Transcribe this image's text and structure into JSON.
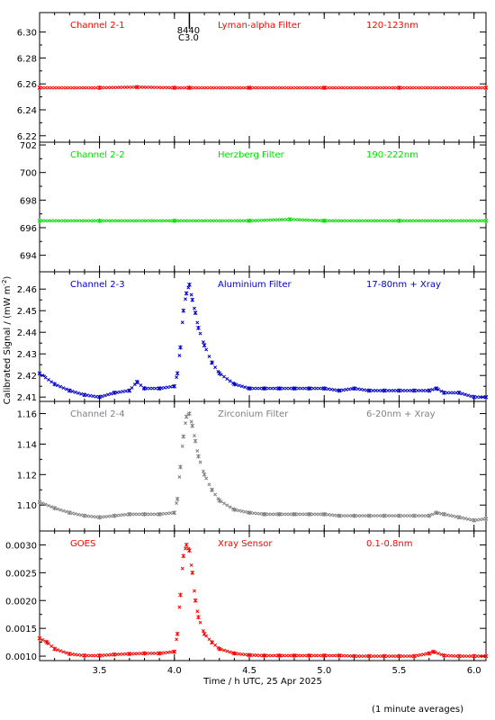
{
  "chart_data": {
    "type": "scatter",
    "xlabel": "Time / h UTC, 25 Apr 2025",
    "ylabel": "Calibrated Signal / (mW m",
    "ylabel_sup": "-2",
    "ylabel_close": ")",
    "footnote": "(1 minute averages)",
    "xlim": [
      3.1,
      6.08
    ],
    "x_ticks": [
      "3.5",
      "4.0",
      "4.5",
      "5.0",
      "5.5",
      "6.0"
    ],
    "flare_marker": {
      "x": 4.1,
      "label_top": "8440",
      "label_bottom": "C3.0"
    },
    "panels": [
      {
        "channel": "Channel 2-1",
        "filter": "Lyman-alpha Filter",
        "band": "120-123nm",
        "color": "#ff0000",
        "ylim": [
          6.215,
          6.315
        ],
        "y_ticks": [
          "6.22",
          "6.24",
          "6.26",
          "6.28",
          "6.30"
        ],
        "series": {
          "x": [
            3.1,
            3.5,
            3.75,
            4.0,
            4.1,
            4.5,
            5.0,
            5.5,
            6.08
          ],
          "y": [
            6.257,
            6.257,
            6.2575,
            6.257,
            6.257,
            6.257,
            6.257,
            6.257,
            6.257
          ]
        }
      },
      {
        "channel": "Channel 2-2",
        "filter": "Herzberg Filter",
        "band": "190-222nm",
        "color": "#00dd00",
        "ylim": [
          692.8,
          702.2
        ],
        "y_ticks": [
          "694",
          "696",
          "698",
          "700",
          "702"
        ],
        "series": {
          "x": [
            3.1,
            3.5,
            4.0,
            4.5,
            4.77,
            5.0,
            5.5,
            6.08
          ],
          "y": [
            696.5,
            696.5,
            696.5,
            696.5,
            696.6,
            696.5,
            696.5,
            696.5
          ]
        }
      },
      {
        "channel": "Channel 2-3",
        "filter": "Aluminium Filter",
        "band": "17-80nm + Xray",
        "color": "#0000cc",
        "ylim": [
          2.408,
          2.468
        ],
        "y_ticks": [
          "2.41",
          "2.42",
          "2.43",
          "2.44",
          "2.45",
          "2.46"
        ],
        "series": {
          "x": [
            3.1,
            3.2,
            3.3,
            3.4,
            3.5,
            3.6,
            3.7,
            3.75,
            3.8,
            3.9,
            4.0,
            4.02,
            4.04,
            4.06,
            4.08,
            4.1,
            4.12,
            4.14,
            4.16,
            4.2,
            4.25,
            4.3,
            4.4,
            4.5,
            4.6,
            4.7,
            4.8,
            4.9,
            5.0,
            5.1,
            5.2,
            5.3,
            5.4,
            5.5,
            5.6,
            5.7,
            5.75,
            5.8,
            5.9,
            6.0,
            6.08
          ],
          "y": [
            2.421,
            2.416,
            2.413,
            2.411,
            2.41,
            2.412,
            2.413,
            2.417,
            2.414,
            2.414,
            2.415,
            2.421,
            2.433,
            2.45,
            2.458,
            2.462,
            2.455,
            2.449,
            2.442,
            2.434,
            2.426,
            2.421,
            2.416,
            2.414,
            2.414,
            2.414,
            2.414,
            2.414,
            2.414,
            2.413,
            2.414,
            2.413,
            2.413,
            2.413,
            2.413,
            2.413,
            2.414,
            2.412,
            2.412,
            2.41,
            2.41
          ]
        }
      },
      {
        "channel": "Channel 2-4",
        "filter": "Zirconium Filter",
        "band": "6-20nm + Xray",
        "color": "#808080",
        "ylim": [
          1.083,
          1.168
        ],
        "y_ticks": [
          "1.10",
          "1.12",
          "1.14",
          "1.16"
        ],
        "series": {
          "x": [
            3.1,
            3.2,
            3.3,
            3.4,
            3.5,
            3.6,
            3.7,
            3.8,
            3.9,
            4.0,
            4.02,
            4.04,
            4.06,
            4.08,
            4.1,
            4.12,
            4.14,
            4.16,
            4.2,
            4.25,
            4.3,
            4.4,
            4.5,
            4.6,
            4.7,
            4.8,
            4.9,
            5.0,
            5.1,
            5.2,
            5.3,
            5.4,
            5.5,
            5.6,
            5.7,
            5.75,
            5.8,
            5.9,
            6.0,
            6.08
          ],
          "y": [
            1.102,
            1.098,
            1.095,
            1.093,
            1.092,
            1.093,
            1.094,
            1.094,
            1.094,
            1.095,
            1.104,
            1.125,
            1.145,
            1.158,
            1.16,
            1.152,
            1.142,
            1.132,
            1.12,
            1.11,
            1.103,
            1.097,
            1.095,
            1.094,
            1.094,
            1.094,
            1.094,
            1.094,
            1.093,
            1.093,
            1.093,
            1.093,
            1.093,
            1.093,
            1.093,
            1.095,
            1.094,
            1.092,
            1.09,
            1.091
          ]
        }
      },
      {
        "channel": "GOES",
        "filter": "Xray Sensor",
        "band": "0.1-0.8nm",
        "color": "#ff0000",
        "ylim": [
          0.00092,
          0.00325
        ],
        "y_ticks": [
          "0.0010",
          "0.0015",
          "0.0020",
          "0.0025",
          "0.0030"
        ],
        "series": {
          "x": [
            3.1,
            3.15,
            3.2,
            3.3,
            3.4,
            3.5,
            3.6,
            3.7,
            3.8,
            3.9,
            4.0,
            4.02,
            4.04,
            4.06,
            4.08,
            4.1,
            4.12,
            4.14,
            4.16,
            4.2,
            4.25,
            4.3,
            4.4,
            4.5,
            4.6,
            4.7,
            4.8,
            4.9,
            5.0,
            5.1,
            5.2,
            5.3,
            5.4,
            5.5,
            5.6,
            5.7,
            5.73,
            5.8,
            5.9,
            6.0,
            6.08
          ],
          "y": [
            0.00132,
            0.00125,
            0.00113,
            0.00104,
            0.00101,
            0.00101,
            0.00103,
            0.00104,
            0.00105,
            0.00105,
            0.00108,
            0.0014,
            0.0021,
            0.0028,
            0.003,
            0.0029,
            0.0025,
            0.002,
            0.0017,
            0.0014,
            0.00125,
            0.00113,
            0.00105,
            0.00102,
            0.00101,
            0.00101,
            0.00101,
            0.00101,
            0.00101,
            0.00101,
            0.001,
            0.001,
            0.001,
            0.001,
            0.001,
            0.00105,
            0.00108,
            0.00101,
            0.001,
            0.001,
            0.001
          ]
        }
      }
    ]
  }
}
